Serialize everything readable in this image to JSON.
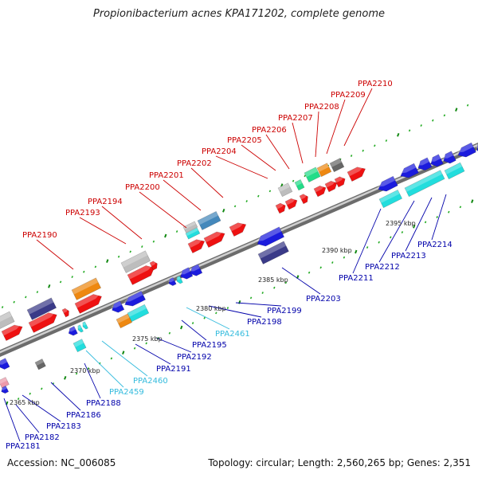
{
  "title": "Propionibacterium acnes KPA171202, complete genome",
  "accession": "Accession: NC_006085",
  "summary": "Topology: circular; Length: 2,560,265 bp; Genes: 2,351",
  "colors": {
    "top_label": "#cc0000",
    "bottom_label": "#0000aa",
    "rna_label": "#33bbdd",
    "backbone": "#808080",
    "tick_mark": "#22aa22"
  },
  "ticks": [
    "2365 kbp",
    "2370 kbp",
    "2375 kbp",
    "2380 kbp",
    "2385 kbp",
    "2390 kbp",
    "2395 kbp"
  ],
  "top_labels": [
    "PPA2190",
    "PPA2193",
    "PPA2194",
    "PPA2200",
    "PPA2201",
    "PPA2202",
    "PPA2204",
    "PPA2205",
    "PPA2206",
    "PPA2207",
    "PPA2208",
    "PPA2209",
    "PPA2210"
  ],
  "bottom_labels": [
    "PPA2181",
    "PPA2182",
    "PPA2183",
    "PPA2186",
    "PPA2188",
    "PPA2459",
    "PPA2460",
    "PPA2191",
    "PPA2192",
    "PPA2195",
    "PPA2461",
    "PPA2198",
    "PPA2199",
    "PPA2203",
    "PPA2211",
    "PPA2212",
    "PPA2213",
    "PPA2214"
  ],
  "rna_genes": [
    "PPA2459",
    "PPA2460",
    "PPA2461"
  ]
}
